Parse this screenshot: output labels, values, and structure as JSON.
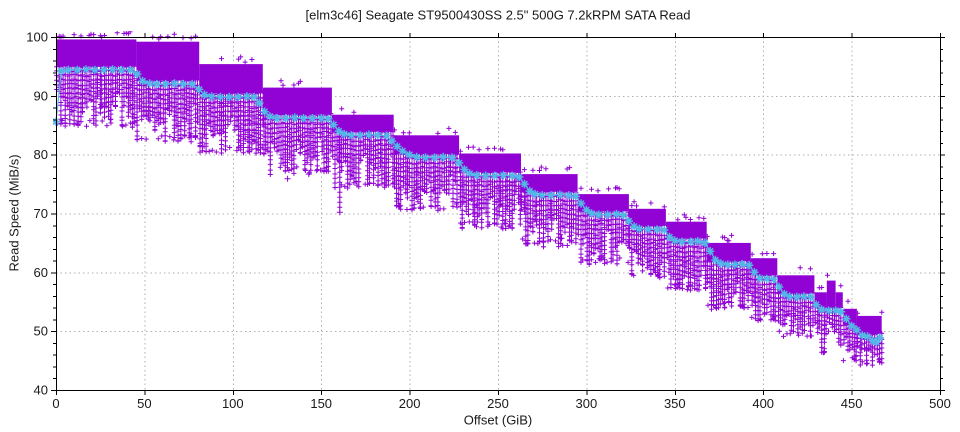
{
  "window": {
    "kind": "benchmark-plot"
  },
  "colors": {
    "background": "#ffffff",
    "samples": "#9103d4",
    "samples_light": "#bb55e5",
    "mean": "#53b7e8",
    "grid": "#b0b0b0",
    "axis": "#000000",
    "text": "#1a1a1a"
  },
  "chart_data": {
    "type": "scatter",
    "title": "[elm3c46] Seagate ST9500430SS 2.5\" 500G 7.2kRPM SATA Read",
    "xlabel": "Offset (GiB)",
    "ylabel": "Read Speed (MiB/s)",
    "xlim": [
      0,
      500
    ],
    "ylim": [
      40,
      100
    ],
    "x_ticks": [
      0,
      50,
      100,
      150,
      200,
      250,
      300,
      350,
      400,
      450,
      500
    ],
    "y_ticks": [
      40,
      50,
      60,
      70,
      80,
      90,
      100
    ],
    "y_minor_step": 2,
    "grid": "dotted",
    "legend": "none",
    "series": [
      {
        "name": "read-speed-samples",
        "marker": "plus",
        "color": "#9103d4",
        "zones": [
          {
            "x0": 0,
            "x1": 45.5,
            "mean": 94.4,
            "hi": 99.6,
            "lo": 84.6
          },
          {
            "x0": 45.5,
            "x1": 81,
            "mean": 92.0,
            "hi": 99.2,
            "lo": 82.2
          },
          {
            "x0": 81,
            "x1": 117,
            "mean": 89.8,
            "hi": 95.4,
            "lo": 80.2
          },
          {
            "x0": 117,
            "x1": 156,
            "mean": 86.2,
            "hi": 91.4,
            "lo": 76.6
          },
          {
            "x0": 156,
            "x1": 191,
            "mean": 83.3,
            "hi": 86.8,
            "lo": 74.3
          },
          {
            "x0": 191,
            "x1": 228,
            "mean": 79.5,
            "hi": 83.3,
            "lo": 70.4
          },
          {
            "x0": 228,
            "x1": 263,
            "mean": 76.4,
            "hi": 80.2,
            "lo": 67.3
          },
          {
            "x0": 263,
            "x1": 295,
            "mean": 73.1,
            "hi": 76.7,
            "lo": 64.3
          },
          {
            "x0": 295,
            "x1": 324,
            "mean": 69.8,
            "hi": 73.3,
            "lo": 61.2
          },
          {
            "x0": 324,
            "x1": 345,
            "mean": 67.3,
            "hi": 70.8,
            "lo": 59.0
          },
          {
            "x0": 345,
            "x1": 368,
            "mean": 65.2,
            "hi": 68.6,
            "lo": 56.8
          },
          {
            "x0": 368,
            "x1": 393,
            "mean": 61.3,
            "hi": 65.0,
            "lo": 53.5
          },
          {
            "x0": 393,
            "x1": 408,
            "mean": 58.9,
            "hi": 62.4,
            "lo": 51.5
          },
          {
            "x0": 408,
            "x1": 429,
            "mean": 55.8,
            "hi": 59.5,
            "lo": 48.6
          },
          {
            "x0": 429,
            "x1": 436,
            "mean": 53.5,
            "hi": 56.6,
            "lo": 46.0
          },
          {
            "x0": 436,
            "x1": 441,
            "mean": 53.5,
            "hi": 58.6,
            "lo": 49.5
          },
          {
            "x0": 441,
            "x1": 445,
            "mean": 53.4,
            "hi": 56.6,
            "lo": 47.5
          },
          {
            "x0": 445,
            "x1": 453,
            "mean": 50.5,
            "hi": 53.8,
            "lo": 44.8
          },
          {
            "x0": 453,
            "x1": 467,
            "mean": 48.9,
            "hi": 52.6,
            "lo": 44.2
          }
        ],
        "spikes": [
          {
            "x": 160.5,
            "top": 83.8,
            "bottom": 70.2
          }
        ],
        "outliers": [
          [
            131,
            75.9
          ],
          [
            143,
            76.7
          ],
          [
            238,
            71.4
          ],
          [
            286,
            65.8
          ]
        ]
      },
      {
        "name": "mean-read-speed",
        "marker": "asterisk",
        "color": "#53b7e8",
        "points": [
          [
            0,
            85.6
          ],
          [
            3,
            94.2
          ],
          [
            7,
            94.4
          ],
          [
            12,
            94.4
          ],
          [
            17,
            94.5
          ],
          [
            22,
            94.4
          ],
          [
            27,
            94.4
          ],
          [
            32,
            94.5
          ],
          [
            37,
            94.4
          ],
          [
            42,
            94.4
          ],
          [
            46,
            93.7
          ],
          [
            49,
            92.5
          ],
          [
            53,
            92.1
          ],
          [
            57,
            92.0
          ],
          [
            62,
            92.0
          ],
          [
            67,
            92.1
          ],
          [
            72,
            92.0
          ],
          [
            77,
            92.0
          ],
          [
            81,
            91.1
          ],
          [
            84,
            90.2
          ],
          [
            88,
            89.9
          ],
          [
            93,
            89.8
          ],
          [
            98,
            89.8
          ],
          [
            103,
            89.8
          ],
          [
            108,
            89.9
          ],
          [
            112,
            89.8
          ],
          [
            115,
            88.8
          ],
          [
            118,
            87.3
          ],
          [
            121,
            86.5
          ],
          [
            125,
            86.2
          ],
          [
            130,
            86.2
          ],
          [
            135,
            86.3
          ],
          [
            140,
            86.2
          ],
          [
            145,
            86.2
          ],
          [
            150,
            86.2
          ],
          [
            154,
            86.1
          ],
          [
            157,
            85.1
          ],
          [
            160,
            84.0
          ],
          [
            163,
            83.5
          ],
          [
            167,
            83.3
          ],
          [
            172,
            83.3
          ],
          [
            177,
            83.4
          ],
          [
            182,
            83.3
          ],
          [
            187,
            83.2
          ],
          [
            190,
            82.3
          ],
          [
            193,
            81.4
          ],
          [
            196,
            80.6
          ],
          [
            200,
            80.0
          ],
          [
            204,
            79.6
          ],
          [
            209,
            79.5
          ],
          [
            214,
            79.5
          ],
          [
            219,
            79.6
          ],
          [
            224,
            79.5
          ],
          [
            228,
            78.6
          ],
          [
            231,
            77.5
          ],
          [
            234,
            76.8
          ],
          [
            238,
            76.5
          ],
          [
            243,
            76.4
          ],
          [
            248,
            76.4
          ],
          [
            253,
            76.5
          ],
          [
            258,
            76.4
          ],
          [
            262,
            76.2
          ],
          [
            265,
            75.0
          ],
          [
            268,
            73.8
          ],
          [
            271,
            73.3
          ],
          [
            275,
            73.1
          ],
          [
            280,
            73.1
          ],
          [
            285,
            73.2
          ],
          [
            290,
            73.1
          ],
          [
            294,
            72.9
          ],
          [
            297,
            71.7
          ],
          [
            300,
            70.6
          ],
          [
            303,
            70.0
          ],
          [
            307,
            69.8
          ],
          [
            312,
            69.8
          ],
          [
            317,
            69.9
          ],
          [
            321,
            69.7
          ],
          [
            324,
            68.7
          ],
          [
            327,
            67.8
          ],
          [
            330,
            67.4
          ],
          [
            335,
            67.3
          ],
          [
            340,
            67.3
          ],
          [
            344,
            67.2
          ],
          [
            347,
            66.0
          ],
          [
            350,
            65.4
          ],
          [
            354,
            65.2
          ],
          [
            359,
            65.2
          ],
          [
            363,
            65.3
          ],
          [
            367,
            65.0
          ],
          [
            370,
            63.6
          ],
          [
            373,
            62.1
          ],
          [
            376,
            61.5
          ],
          [
            380,
            61.3
          ],
          [
            384,
            61.3
          ],
          [
            388,
            61.4
          ],
          [
            392,
            61.2
          ],
          [
            395,
            60.0
          ],
          [
            398,
            59.0
          ],
          [
            402,
            58.9
          ],
          [
            406,
            58.8
          ],
          [
            409,
            57.5
          ],
          [
            412,
            56.3
          ],
          [
            415,
            55.9
          ],
          [
            419,
            55.8
          ],
          [
            423,
            55.9
          ],
          [
            427,
            55.8
          ],
          [
            430,
            54.5
          ],
          [
            433,
            53.7
          ],
          [
            437,
            53.5
          ],
          [
            441,
            53.5
          ],
          [
            444,
            53.3
          ],
          [
            447,
            52.1
          ],
          [
            450,
            50.9
          ],
          [
            453,
            50.2
          ],
          [
            456,
            49.3
          ],
          [
            459,
            49.1
          ],
          [
            462,
            48.4
          ],
          [
            464,
            48.1
          ],
          [
            466,
            48.9
          ]
        ]
      }
    ]
  }
}
